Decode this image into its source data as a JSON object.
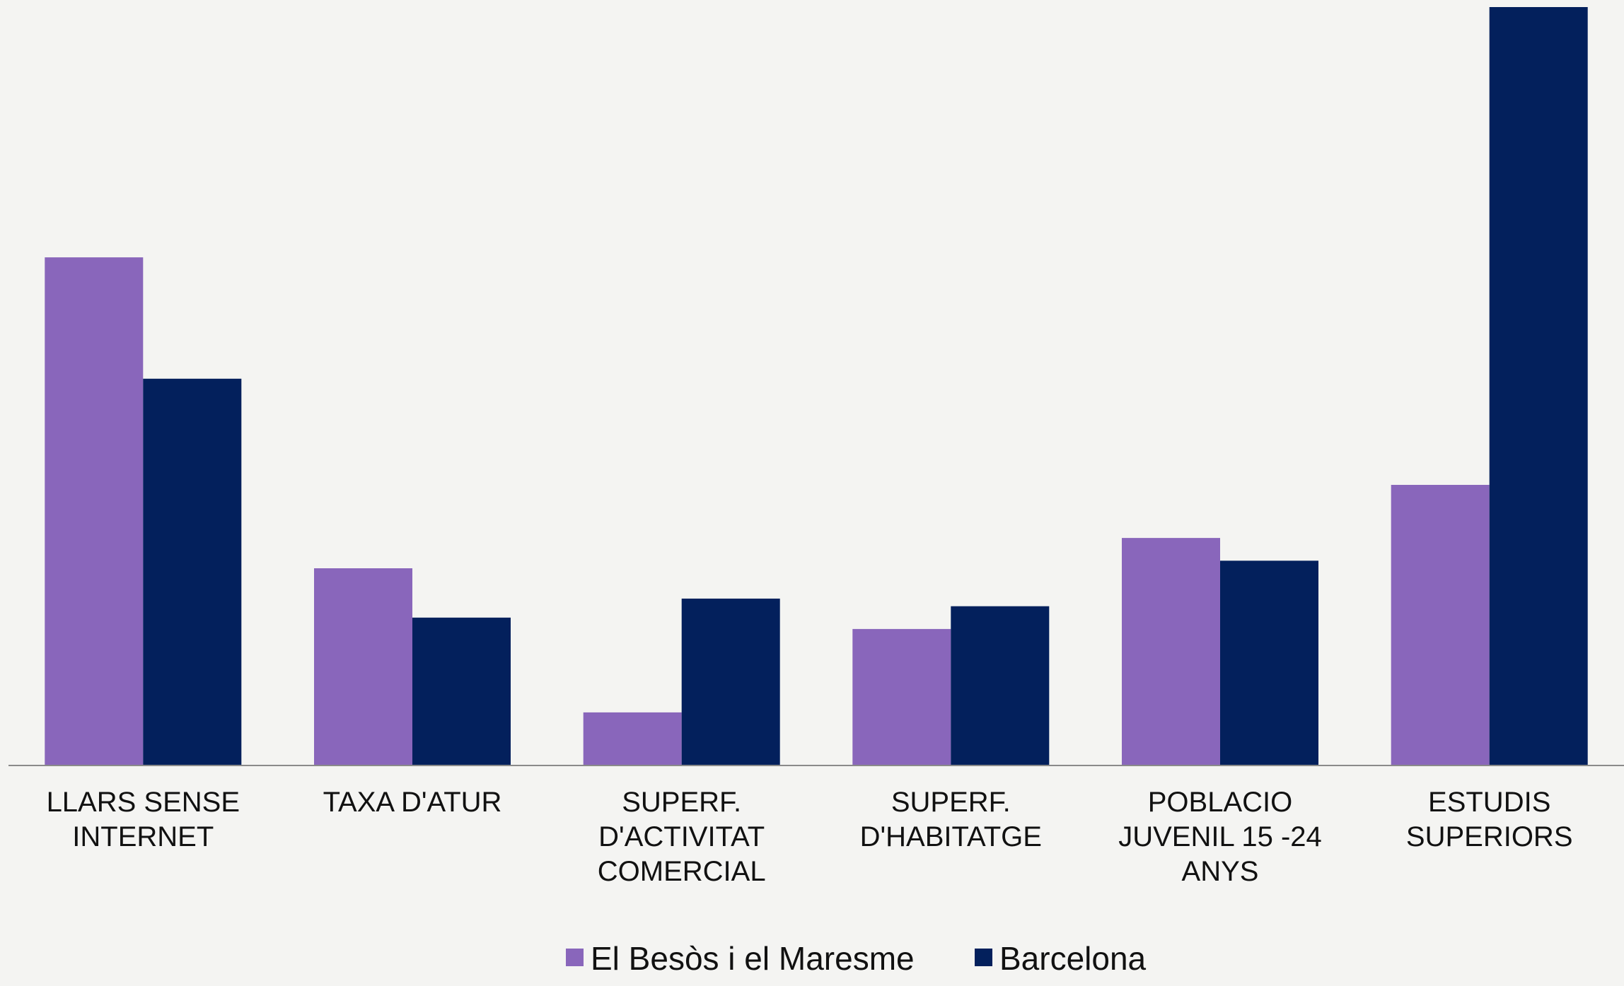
{
  "chart_data": {
    "type": "bar",
    "categories": [
      [
        "LLARS SENSE",
        "INTERNET"
      ],
      [
        "TAXA D'ATUR"
      ],
      [
        "SUPERF.",
        "D'ACTIVITAT",
        "COMERCIAL"
      ],
      [
        "SUPERF.",
        "D'HABITATGE"
      ],
      [
        "POBLACIO",
        "JUVENIL 15 -24",
        "ANYS"
      ],
      [
        "ESTUDIS",
        "SUPERIORS"
      ]
    ],
    "series": [
      {
        "name": "El Besòs i el Maresme",
        "color": "#8966bb",
        "values": [
          67,
          26,
          7,
          18,
          30,
          37
        ]
      },
      {
        "name": "Barcelona",
        "color": "#03205c",
        "values": [
          51,
          19.5,
          22,
          21,
          27,
          100
        ]
      }
    ],
    "ylim": [
      0,
      100
    ],
    "grid": false,
    "legend_position": "bottom-center",
    "title": "",
    "xlabel": "",
    "ylabel": ""
  }
}
